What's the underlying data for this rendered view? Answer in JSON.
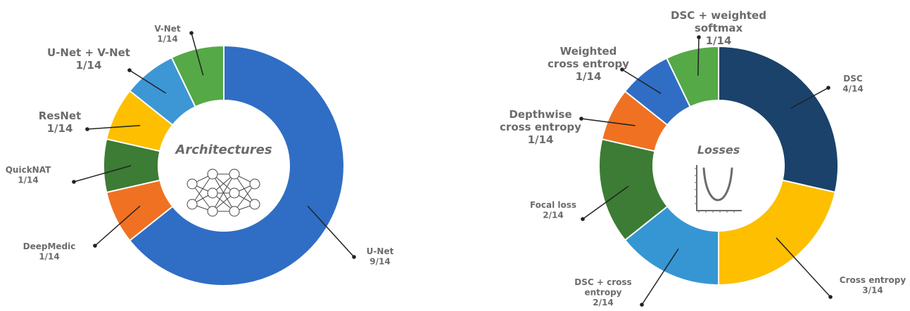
{
  "chart_data": [
    {
      "type": "pie",
      "variant": "donut",
      "center_text": "Architectures",
      "center_icon": "neural-network-icon",
      "slices": [
        {
          "label": "U-Net",
          "value": 9,
          "fraction": "9/14",
          "color": "#2F6EC4"
        },
        {
          "label": "DeepMedic",
          "value": 1,
          "fraction": "1/14",
          "color": "#F07122"
        },
        {
          "label": "QuickNAT",
          "value": 1,
          "fraction": "1/14",
          "color": "#3C7C34"
        },
        {
          "label": "ResNet",
          "value": 1,
          "fraction": "1/14",
          "color": "#FDBF00"
        },
        {
          "label": "U-Net + V-Net",
          "value": 1,
          "fraction": "1/14",
          "color": "#3D97D5"
        },
        {
          "label": "V-Net",
          "value": 1,
          "fraction": "1/14",
          "color": "#55A947"
        }
      ]
    },
    {
      "type": "pie",
      "variant": "donut",
      "center_text": "Losses",
      "center_icon": "loss-curve-icon",
      "slices": [
        {
          "label": "DSC",
          "value": 4,
          "fraction": "4/14",
          "color": "#1A426B"
        },
        {
          "label": "Cross entropy",
          "value": 3,
          "fraction": "3/14",
          "color": "#FDBF00"
        },
        {
          "label": "DSC + cross entropy",
          "value": 2,
          "fraction": "2/14",
          "color": "#3596D3"
        },
        {
          "label": "Focal loss",
          "value": 2,
          "fraction": "2/14",
          "color": "#3C7C34"
        },
        {
          "label": "Depthwise cross entropy",
          "value": 1,
          "fraction": "1/14",
          "color": "#F07122"
        },
        {
          "label": "Weighted cross entropy",
          "value": 1,
          "fraction": "1/14",
          "color": "#2F6EC4"
        },
        {
          "label": "DSC + weighted softmax",
          "value": 1,
          "fraction": "1/14",
          "color": "#55A947"
        }
      ]
    }
  ]
}
